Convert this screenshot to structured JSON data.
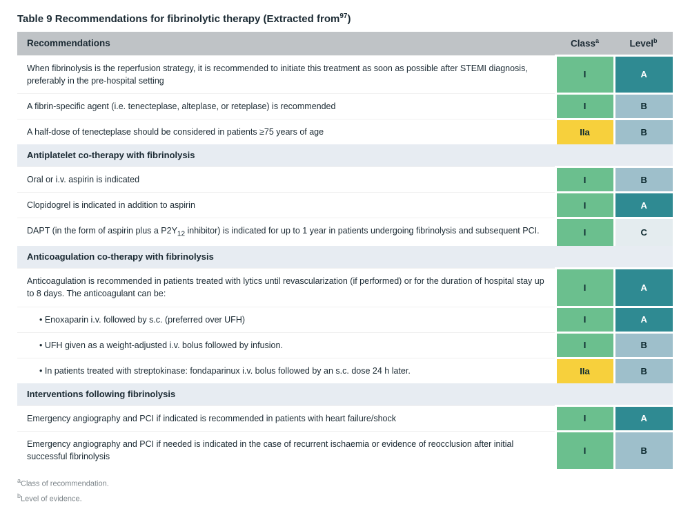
{
  "title_prefix": "Table 9 Recommendations for fibrinolytic therapy (Extracted from",
  "title_ref": "97",
  "title_suffix": ")",
  "columns": {
    "rec": "Recommendations",
    "class": "Class",
    "class_sup": "a",
    "level": "Level",
    "level_sup": "b"
  },
  "colors": {
    "class_I": "#6bbf8e",
    "class_IIa": "#f7d03c",
    "level_A": "#2f8a92",
    "level_B": "#9ebfcb",
    "level_C": "#e4ecef",
    "level_A_text": "#ffffff",
    "level_default_text": "#0e2a30"
  },
  "rows": [
    {
      "type": "data",
      "text": "When fibrinolysis is the reperfusion strategy, it is recommended to initiate this treatment as soon as possible after STEMI diagnosis, preferably in the pre-hospital setting",
      "class": "I",
      "level": "A"
    },
    {
      "type": "data",
      "text": "A fibrin-specific agent (i.e. tenecteplase, alteplase, or reteplase) is recommended",
      "class": "I",
      "level": "B"
    },
    {
      "type": "data",
      "text": "A half-dose of tenecteplase should be considered in patients ≥75 years of age",
      "class": "IIa",
      "level": "B"
    },
    {
      "type": "section",
      "text": "Antiplatelet co-therapy with fibrinolysis"
    },
    {
      "type": "data",
      "text": "Oral or i.v. aspirin is indicated",
      "class": "I",
      "level": "B"
    },
    {
      "type": "data",
      "text": "Clopidogrel is indicated in addition to aspirin",
      "class": "I",
      "level": "A"
    },
    {
      "type": "data",
      "html": "DAPT (in the form of aspirin plus a P2Y<sub>12</sub> inhibitor) is indicated for up to 1 year in patients undergoing fibrinolysis and subsequent PCI.",
      "class": "I",
      "level": "C"
    },
    {
      "type": "section",
      "text": "Anticoagulation co-therapy with fibrinolysis"
    },
    {
      "type": "data",
      "text": "Anticoagulation is recommended in patients treated with lytics until revascularization (if performed) or for the duration of hospital stay up to 8 days. The anticoagulant can be:",
      "class": "I",
      "level": "A"
    },
    {
      "type": "data",
      "indent": true,
      "text": "• Enoxaparin i.v. followed by s.c. (preferred over UFH)",
      "class": "I",
      "level": "A"
    },
    {
      "type": "data",
      "indent": true,
      "text": "• UFH given as a weight-adjusted i.v. bolus followed by infusion.",
      "class": "I",
      "level": "B"
    },
    {
      "type": "data",
      "indent": true,
      "text": "• In patients treated with streptokinase: fondaparinux i.v. bolus followed by an s.c. dose 24 h later.",
      "class": "IIa",
      "level": "B"
    },
    {
      "type": "section",
      "text": "Interventions following fibrinolysis"
    },
    {
      "type": "data",
      "text": "Emergency angiography and PCI if indicated is recommended in patients with heart failure/shock",
      "class": "I",
      "level": "A"
    },
    {
      "type": "data",
      "text": "Emergency angiography and PCI if needed is indicated in the case of recurrent ischaemia or evidence of reocclusion after initial successful fibrinolysis",
      "class": "I",
      "level": "B"
    }
  ],
  "footnotes": [
    {
      "sup": "a",
      "text": "Class of recommendation."
    },
    {
      "sup": "b",
      "text": "Level of evidence."
    }
  ]
}
